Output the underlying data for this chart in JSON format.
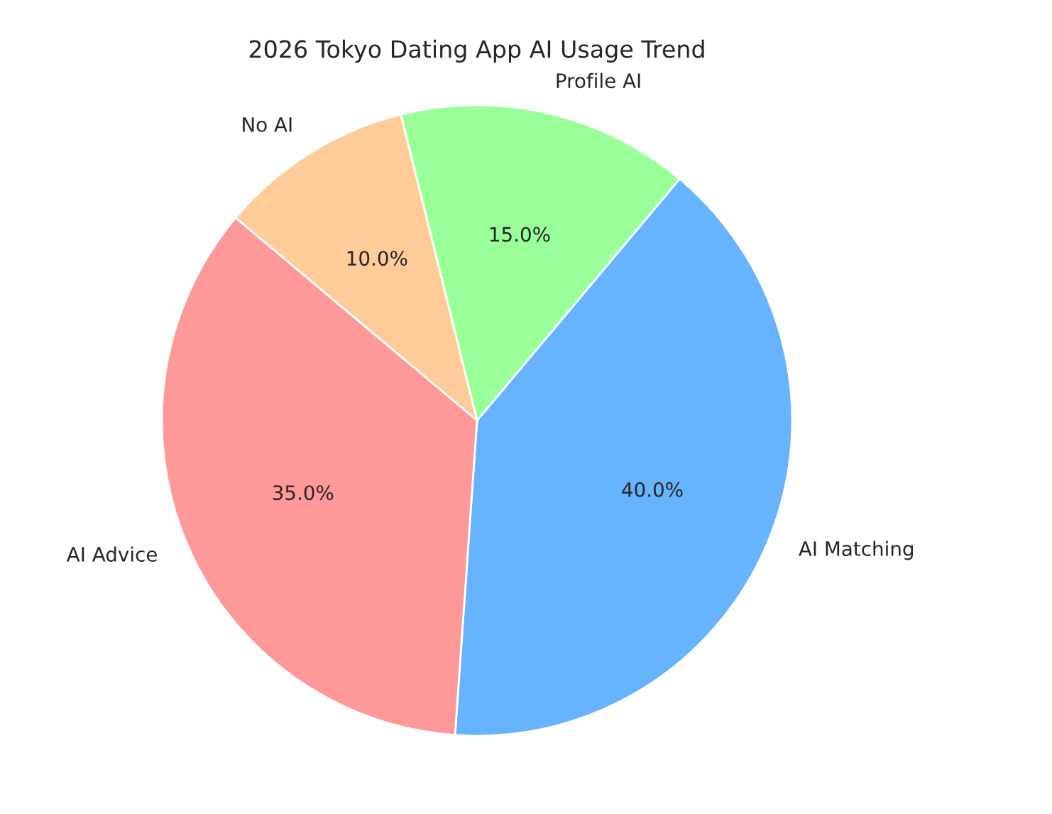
{
  "chart_data": {
    "type": "pie",
    "title": "2026 Tokyo Dating App AI Usage Trend",
    "categories": [
      "AI Matching",
      "Profile AI",
      "No AI",
      "AI Advice"
    ],
    "values": [
      40,
      15,
      10,
      35
    ],
    "colors": [
      "#66b3ff",
      "#99ff99",
      "#ffcc99",
      "#ff9999"
    ],
    "value_labels": [
      "40.0%",
      "15.0%",
      "10.0%",
      "35.0%"
    ]
  }
}
